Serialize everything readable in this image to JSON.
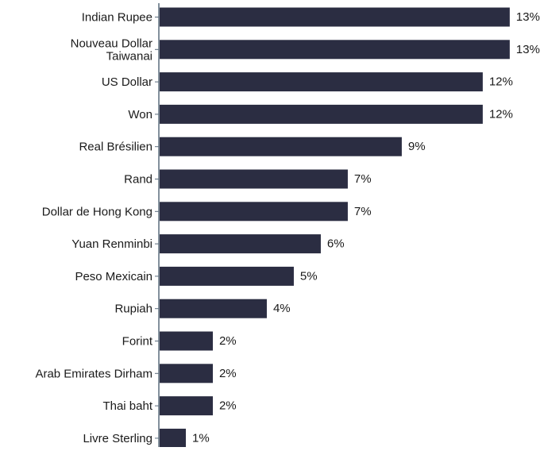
{
  "chart_data": {
    "type": "bar",
    "orientation": "horizontal",
    "title": "",
    "xlabel": "",
    "ylabel": "",
    "xlim": [
      0,
      13.3
    ],
    "grid": false,
    "legend": "none",
    "bar_color": "#2b2d42",
    "axis_color": "#5a6b7b",
    "categories": [
      "Indian Rupee",
      "Nouveau Dollar Taiwanai",
      "US Dollar",
      "Won",
      "Real Brésilien",
      "Rand",
      "Dollar de Hong Kong",
      "Yuan Renminbi",
      "Peso Mexicain",
      "Rupiah",
      "Forint",
      "Arab Emirates Dirham",
      "Thai baht",
      "Livre Sterling"
    ],
    "category_lines": [
      [
        "Indian Rupee"
      ],
      [
        "Nouveau Dollar",
        "Taiwanai"
      ],
      [
        "US Dollar"
      ],
      [
        "Won"
      ],
      [
        "Real Brésilien"
      ],
      [
        "Rand"
      ],
      [
        "Dollar de Hong Kong"
      ],
      [
        "Yuan Renminbi"
      ],
      [
        "Peso Mexicain"
      ],
      [
        "Rupiah"
      ],
      [
        "Forint"
      ],
      [
        "Arab Emirates Dirham"
      ],
      [
        "Thai baht"
      ],
      [
        "Livre Sterling"
      ]
    ],
    "values": [
      13,
      13,
      12,
      12,
      9,
      7,
      7,
      6,
      5,
      4,
      2,
      2,
      2,
      1
    ],
    "data_labels": [
      "13%",
      "13%",
      "12%",
      "12%",
      "9%",
      "7%",
      "7%",
      "6%",
      "5%",
      "4%",
      "2%",
      "2%",
      "2%",
      "1%"
    ]
  }
}
